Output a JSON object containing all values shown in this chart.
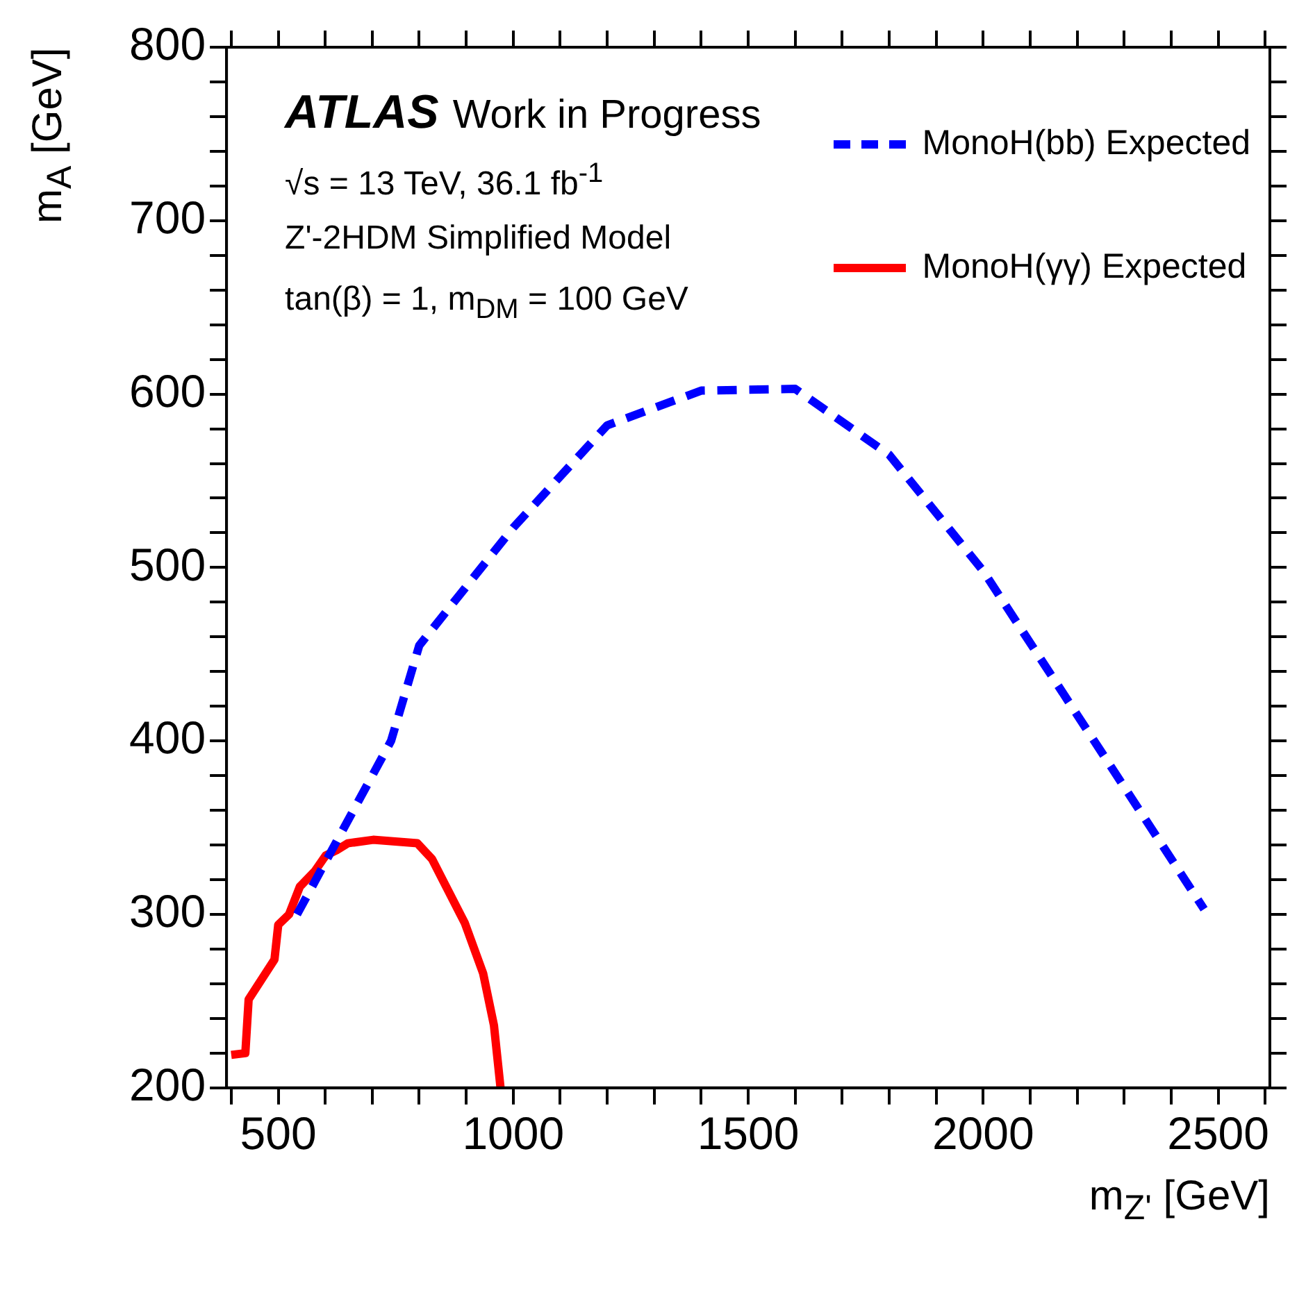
{
  "chart_data": {
    "type": "line",
    "xlabel": "m$_{Z'}$ [GeV]",
    "ylabel": "m$_{A}$ [GeV]",
    "annotations": [
      "ATLAS",
      "Work in Progress",
      "√s = 13 TeV, 36.1 fb$^{-1}$",
      "Z'-2HDM Simplified Model",
      "tan(β) = 1, m$_{DM}$ = 100 GeV"
    ],
    "xlim": [
      390,
      2610
    ],
    "ylim": [
      200,
      800
    ],
    "xticks": [
      {
        "value": 400,
        "label": null
      },
      500,
      {
        "value": 600,
        "label": null
      },
      {
        "value": 700,
        "label": null
      },
      {
        "value": 800,
        "label": null
      },
      {
        "value": 900,
        "label": null
      },
      1000,
      {
        "value": 1100,
        "label": null
      },
      {
        "value": 1200,
        "label": null
      },
      {
        "value": 1300,
        "label": null
      },
      {
        "value": 1400,
        "label": null
      },
      1500,
      {
        "value": 1600,
        "label": null
      },
      {
        "value": 1700,
        "label": null
      },
      {
        "value": 1800,
        "label": null
      },
      {
        "value": 1900,
        "label": null
      },
      2000,
      {
        "value": 2100,
        "label": null
      },
      {
        "value": 2200,
        "label": null
      },
      {
        "value": 2300,
        "label": null
      },
      {
        "value": 2400,
        "label": null
      },
      2500,
      {
        "value": 2600,
        "label": null
      }
    ],
    "yticks": [
      200,
      {
        "value": 220,
        "label": null
      },
      {
        "value": 240,
        "label": null
      },
      {
        "value": 260,
        "label": null
      },
      {
        "value": 280,
        "label": null
      },
      300,
      {
        "value": 320,
        "label": null
      },
      {
        "value": 340,
        "label": null
      },
      {
        "value": 360,
        "label": null
      },
      {
        "value": 380,
        "label": null
      },
      400,
      {
        "value": 420,
        "label": null
      },
      {
        "value": 440,
        "label": null
      },
      {
        "value": 460,
        "label": null
      },
      {
        "value": 480,
        "label": null
      },
      500,
      {
        "value": 520,
        "label": null
      },
      {
        "value": 540,
        "label": null
      },
      {
        "value": 560,
        "label": null
      },
      {
        "value": 580,
        "label": null
      },
      600,
      {
        "value": 620,
        "label": null
      },
      {
        "value": 640,
        "label": null
      },
      {
        "value": 660,
        "label": null
      },
      {
        "value": 680,
        "label": null
      },
      700,
      {
        "value": 720,
        "label": null
      },
      {
        "value": 740,
        "label": null
      },
      {
        "value": 760,
        "label": null
      },
      {
        "value": 780,
        "label": null
      },
      800
    ],
    "grid": false,
    "legend": "top right",
    "marker": "none",
    "series": [
      {
        "name": "MonoH(bb) Expected",
        "color": "#0000ff",
        "line_style": "dashed",
        "x": [
          540,
          740,
          800,
          1000,
          1200,
          1400,
          1600,
          1800,
          2000,
          2470
        ],
        "values": [
          300,
          400,
          455,
          523,
          582,
          602,
          603,
          565,
          498,
          303
        ]
      },
      {
        "name": "MonoH(γγ) Expected",
        "color": "#ff0000",
        "line_style": "solid",
        "x": [
          400,
          430,
          437,
          492,
          500,
          523,
          546,
          578,
          601,
          624,
          648,
          702,
          796,
          827,
          897,
          936,
          959,
          973
        ],
        "values": [
          219,
          220,
          251,
          274,
          294,
          300,
          316,
          325,
          334,
          337,
          341,
          343,
          341,
          332,
          295,
          266,
          236,
          200
        ]
      }
    ]
  }
}
